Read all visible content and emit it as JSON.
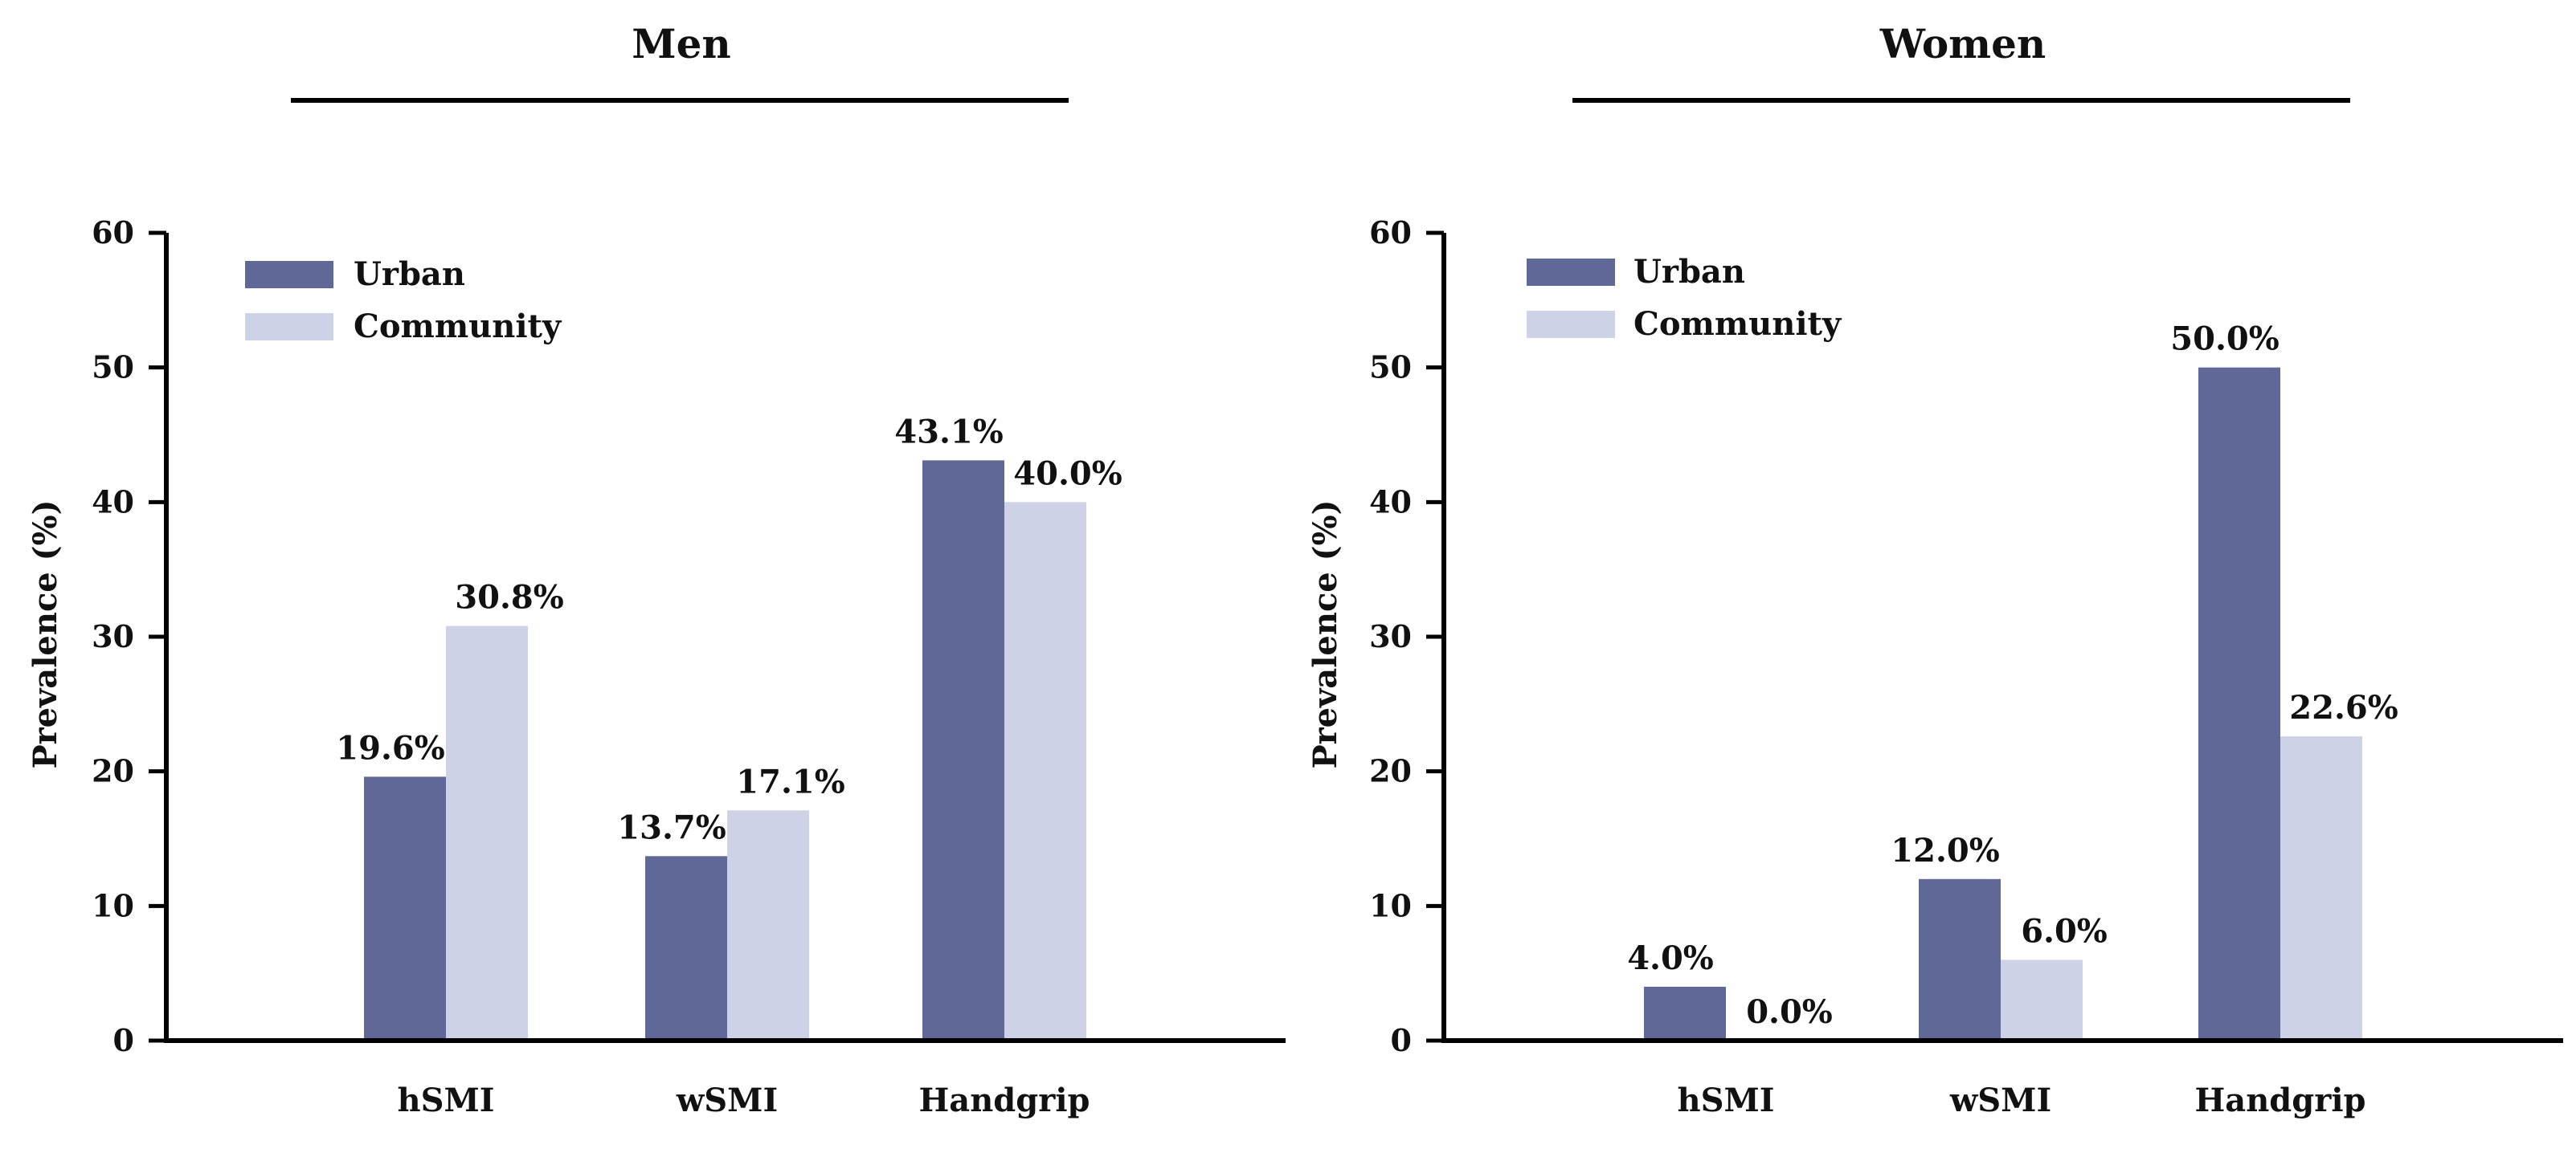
{
  "colors": {
    "urban": "#5f6897",
    "community": "#cdd2e6",
    "axis": "#000000"
  },
  "chart_data": [
    {
      "type": "bar",
      "title": "Men",
      "xlabel": "",
      "ylabel": "Prevalence (%)",
      "ylim": [
        0,
        60
      ],
      "yticks": [
        "0",
        "10",
        "20",
        "30",
        "40",
        "50",
        "60"
      ],
      "categories": [
        "hSMI",
        "wSMI",
        "Handgrip"
      ],
      "legend_position": "top-left",
      "series": [
        {
          "name": "Urban",
          "values": [
            19.6,
            13.7,
            43.1
          ],
          "labels": [
            "19.6%",
            "13.7%",
            "43.1%"
          ]
        },
        {
          "name": "Community",
          "values": [
            30.8,
            17.1,
            40.0
          ],
          "labels": [
            "30.8%",
            "17.1%",
            "40.0%"
          ]
        }
      ]
    },
    {
      "type": "bar",
      "title": "Women",
      "xlabel": "",
      "ylabel": "Prevalence (%)",
      "ylim": [
        0,
        60
      ],
      "yticks": [
        "0",
        "10",
        "20",
        "30",
        "40",
        "50",
        "60"
      ],
      "categories": [
        "hSMI",
        "wSMI",
        "Handgrip"
      ],
      "legend_position": "top-left",
      "series": [
        {
          "name": "Urban",
          "values": [
            4.0,
            12.0,
            50.0
          ],
          "labels": [
            "4.0%",
            "12.0%",
            "50.0%"
          ]
        },
        {
          "name": "Community",
          "values": [
            0.0,
            6.0,
            22.6
          ],
          "labels": [
            "0.0%",
            "6.0%",
            "22.6%"
          ]
        }
      ]
    }
  ]
}
